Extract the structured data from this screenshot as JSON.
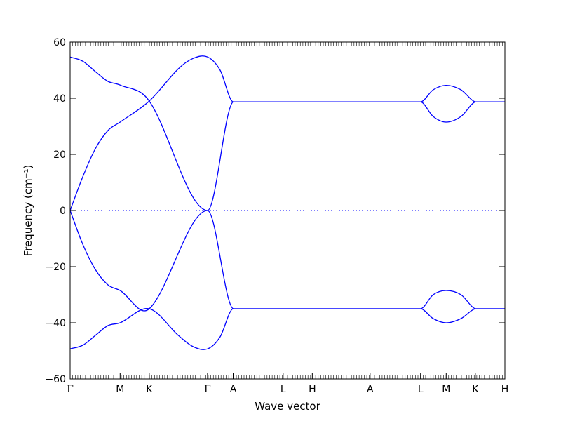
{
  "chart_data": {
    "type": "line",
    "title": "",
    "xlabel": "Wave vector",
    "ylabel": "Frequency (cm⁻¹)",
    "ylim": [
      -60,
      60
    ],
    "yticks": [
      -60,
      -40,
      -20,
      0,
      20,
      40,
      60
    ],
    "ytick_labels": [
      "−60",
      "−40",
      "−20",
      "0",
      "20",
      "40",
      "60"
    ],
    "xticks": [
      {
        "label": "Γ",
        "x": 0.0
      },
      {
        "label": "M",
        "x": 0.115
      },
      {
        "label": "K",
        "x": 0.182
      },
      {
        "label": "Γ",
        "x": 0.316
      },
      {
        "label": "A",
        "x": 0.375
      },
      {
        "label": "L",
        "x": 0.49
      },
      {
        "label": "H",
        "x": 0.557
      },
      {
        "label": "A",
        "x": 0.69
      },
      {
        "label": "L",
        "x": 0.806
      },
      {
        "label": "M",
        "x": 0.865
      },
      {
        "label": "K",
        "x": 0.932
      },
      {
        "label": "H",
        "x": 1.0
      }
    ],
    "zero_line": true,
    "line_color": "#0000ff",
    "series": [
      {
        "x": [
          0.0,
          0.029,
          0.058,
          0.087,
          0.115,
          0.182,
          0.316,
          0.375,
          0.806,
          0.835,
          0.865,
          0.899,
          0.932,
          1.0
        ],
        "y": [
          54.7,
          53.2,
          49.5,
          46.0,
          44.7,
          39.0,
          0.0,
          38.7,
          38.7,
          43.0,
          44.6,
          43.0,
          38.7,
          38.7
        ]
      },
      {
        "x": [
          0.0,
          0.029,
          0.058,
          0.087,
          0.115,
          0.182,
          0.249,
          0.283,
          0.316,
          0.345,
          0.375,
          0.806,
          0.835,
          0.865,
          0.899,
          0.932,
          1.0
        ],
        "y": [
          0.0,
          12.0,
          22.0,
          28.5,
          31.5,
          39.0,
          50.5,
          54.2,
          54.7,
          50.0,
          38.7,
          38.7,
          33.5,
          31.5,
          33.5,
          38.7,
          38.7
        ]
      },
      {
        "x": [
          0.0,
          0.029,
          0.058,
          0.087,
          0.115,
          0.182,
          0.316,
          0.375,
          0.806,
          0.835,
          0.865,
          0.899,
          0.932,
          1.0
        ],
        "y": [
          0.0,
          -12.0,
          -21.0,
          -26.5,
          -28.5,
          -35.0,
          0.0,
          -35.0,
          -35.0,
          -30.0,
          -28.5,
          -30.0,
          -35.0,
          -35.0
        ]
      },
      {
        "x": [
          0.0,
          0.029,
          0.058,
          0.087,
          0.115,
          0.182,
          0.249,
          0.283,
          0.316,
          0.345,
          0.375,
          0.806,
          0.835,
          0.865,
          0.899,
          0.932,
          1.0
        ],
        "y": [
          -49.3,
          -48.0,
          -44.5,
          -41.0,
          -40.0,
          -35.0,
          -44.5,
          -48.5,
          -49.3,
          -45.0,
          -35.0,
          -35.0,
          -38.5,
          -40.0,
          -38.5,
          -35.0,
          -35.0
        ]
      }
    ]
  }
}
